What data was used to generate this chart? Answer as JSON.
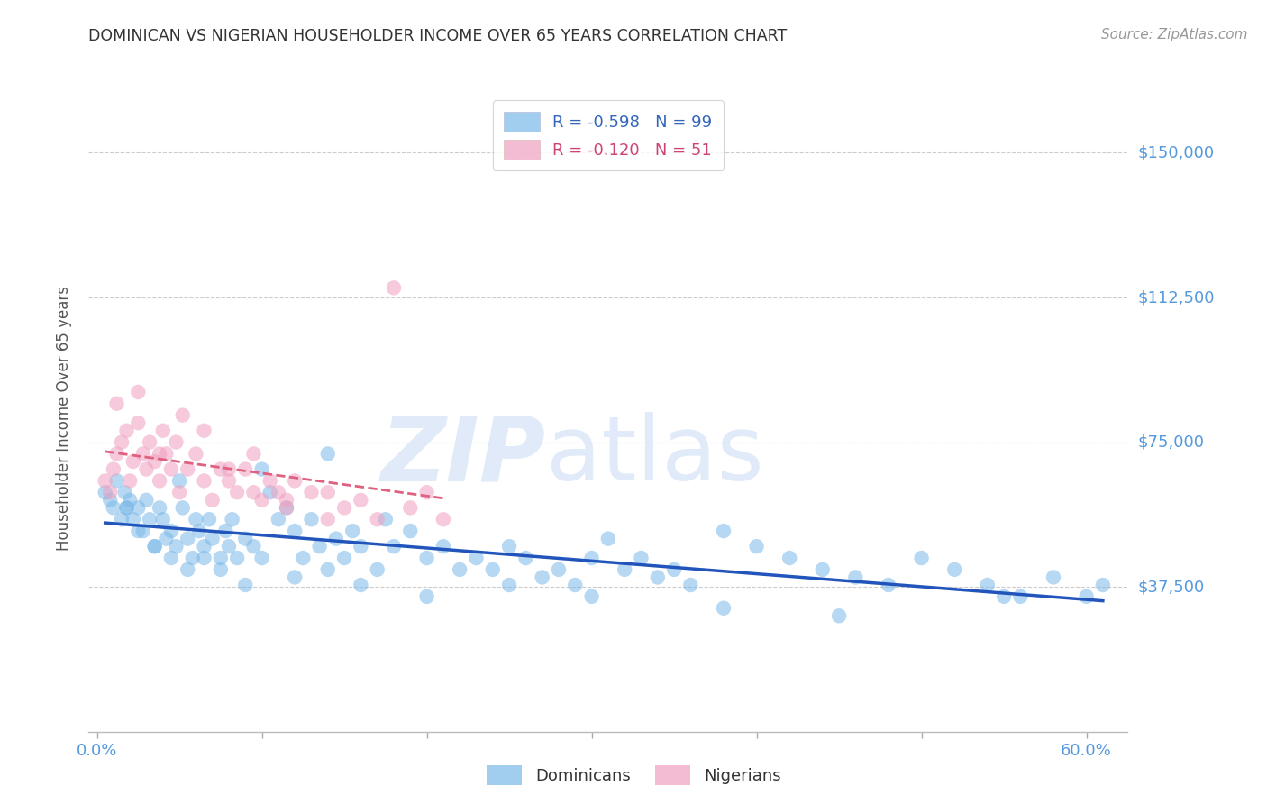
{
  "title": "DOMINICAN VS NIGERIAN HOUSEHOLDER INCOME OVER 65 YEARS CORRELATION CHART",
  "source": "Source: ZipAtlas.com",
  "ylabel": "Householder Income Over 65 years",
  "ytick_labels": [
    "$150,000",
    "$112,500",
    "$75,000",
    "$37,500"
  ],
  "ytick_values": [
    150000,
    112500,
    75000,
    37500
  ],
  "ylim": [
    0,
    162500
  ],
  "xlim": [
    -0.005,
    0.625
  ],
  "dominican_color": "#7ab8e8",
  "nigerian_color": "#f0a0c0",
  "line_dominican_color": "#2255bb",
  "line_nigerian_color": "#e06080",
  "background_color": "#ffffff",
  "grid_color": "#cccccc",
  "tick_label_color": "#5599dd",
  "title_color": "#333333",
  "dominican_x": [
    0.005,
    0.008,
    0.01,
    0.012,
    0.015,
    0.017,
    0.018,
    0.02,
    0.022,
    0.025,
    0.028,
    0.03,
    0.032,
    0.035,
    0.038,
    0.04,
    0.042,
    0.045,
    0.048,
    0.05,
    0.052,
    0.055,
    0.058,
    0.06,
    0.062,
    0.065,
    0.068,
    0.07,
    0.075,
    0.078,
    0.08,
    0.082,
    0.085,
    0.09,
    0.095,
    0.1,
    0.105,
    0.11,
    0.115,
    0.12,
    0.125,
    0.13,
    0.135,
    0.14,
    0.145,
    0.15,
    0.155,
    0.16,
    0.17,
    0.175,
    0.18,
    0.19,
    0.2,
    0.21,
    0.22,
    0.23,
    0.24,
    0.25,
    0.26,
    0.27,
    0.28,
    0.29,
    0.3,
    0.31,
    0.32,
    0.33,
    0.34,
    0.35,
    0.36,
    0.38,
    0.4,
    0.42,
    0.44,
    0.46,
    0.48,
    0.5,
    0.52,
    0.54,
    0.56,
    0.58,
    0.6,
    0.61,
    0.018,
    0.025,
    0.035,
    0.045,
    0.055,
    0.065,
    0.075,
    0.09,
    0.1,
    0.12,
    0.14,
    0.16,
    0.2,
    0.25,
    0.3,
    0.38,
    0.45,
    0.55
  ],
  "dominican_y": [
    62000,
    60000,
    58000,
    65000,
    55000,
    62000,
    58000,
    60000,
    55000,
    58000,
    52000,
    60000,
    55000,
    48000,
    58000,
    55000,
    50000,
    52000,
    48000,
    65000,
    58000,
    50000,
    45000,
    55000,
    52000,
    48000,
    55000,
    50000,
    45000,
    52000,
    48000,
    55000,
    45000,
    50000,
    48000,
    68000,
    62000,
    55000,
    58000,
    52000,
    45000,
    55000,
    48000,
    72000,
    50000,
    45000,
    52000,
    48000,
    42000,
    55000,
    48000,
    52000,
    45000,
    48000,
    42000,
    45000,
    42000,
    48000,
    45000,
    40000,
    42000,
    38000,
    45000,
    50000,
    42000,
    45000,
    40000,
    42000,
    38000,
    52000,
    48000,
    45000,
    42000,
    40000,
    38000,
    45000,
    42000,
    38000,
    35000,
    40000,
    35000,
    38000,
    58000,
    52000,
    48000,
    45000,
    42000,
    45000,
    42000,
    38000,
    45000,
    40000,
    42000,
    38000,
    35000,
    38000,
    35000,
    32000,
    30000,
    35000
  ],
  "nigerian_x": [
    0.005,
    0.008,
    0.01,
    0.012,
    0.015,
    0.018,
    0.02,
    0.022,
    0.025,
    0.028,
    0.03,
    0.032,
    0.035,
    0.038,
    0.04,
    0.042,
    0.045,
    0.048,
    0.05,
    0.055,
    0.06,
    0.065,
    0.07,
    0.075,
    0.08,
    0.085,
    0.09,
    0.095,
    0.1,
    0.105,
    0.11,
    0.115,
    0.12,
    0.13,
    0.14,
    0.15,
    0.16,
    0.17,
    0.18,
    0.19,
    0.2,
    0.21,
    0.012,
    0.025,
    0.038,
    0.052,
    0.065,
    0.08,
    0.095,
    0.115,
    0.14
  ],
  "nigerian_y": [
    65000,
    62000,
    68000,
    72000,
    75000,
    78000,
    65000,
    70000,
    80000,
    72000,
    68000,
    75000,
    70000,
    65000,
    78000,
    72000,
    68000,
    75000,
    62000,
    68000,
    72000,
    65000,
    60000,
    68000,
    65000,
    62000,
    68000,
    62000,
    60000,
    65000,
    62000,
    58000,
    65000,
    62000,
    55000,
    58000,
    60000,
    55000,
    115000,
    58000,
    62000,
    55000,
    85000,
    88000,
    72000,
    82000,
    78000,
    68000,
    72000,
    60000,
    62000
  ]
}
